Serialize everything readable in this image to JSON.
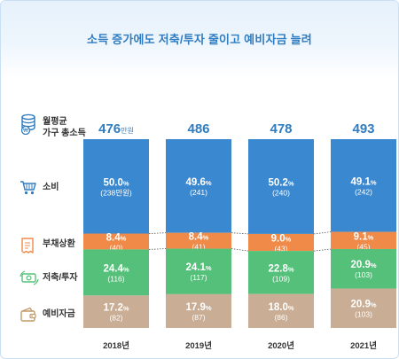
{
  "title": "소득 증가에도 저축/투자 줄이고 예비자금 늘려",
  "chart_data": {
    "type": "bar",
    "stacked": true,
    "categories": [
      "2018년",
      "2019년",
      "2020년",
      "2021년"
    ],
    "totals": [
      "476",
      "486",
      "478",
      "493"
    ],
    "total_unit": "만원",
    "total_label_lines": [
      "월평균",
      "가구 총소득"
    ],
    "series": [
      {
        "name": "소비",
        "pct": [
          50.0,
          49.6,
          50.2,
          49.1
        ],
        "pct_labels": [
          "50.0",
          "49.6",
          "50.2",
          "49.1"
        ],
        "amount_labels": [
          "(238만원)",
          "(241)",
          "(240)",
          "(242)"
        ],
        "color": "#3a88cf"
      },
      {
        "name": "부채상환",
        "pct": [
          8.4,
          8.4,
          9.0,
          9.1
        ],
        "pct_labels": [
          "8.4",
          "8.4",
          "9.0",
          "9.1"
        ],
        "amount_labels": [
          "(40)",
          "(41)",
          "(43)",
          "(45)"
        ],
        "color": "#ef8a48"
      },
      {
        "name": "저축/투자",
        "pct": [
          24.4,
          24.1,
          22.8,
          20.9
        ],
        "pct_labels": [
          "24.4",
          "24.1",
          "22.8",
          "20.9"
        ],
        "amount_labels": [
          "(116)",
          "(117)",
          "(109)",
          "(103)"
        ],
        "color": "#55c079"
      },
      {
        "name": "예비자금",
        "pct": [
          17.2,
          17.9,
          18.0,
          20.9
        ],
        "pct_labels": [
          "17.2",
          "17.9",
          "18.0",
          "20.9"
        ],
        "amount_labels": [
          "(82)",
          "(87)",
          "(86)",
          "(103)"
        ],
        "color": "#c9ad94"
      }
    ],
    "pct_symbol": "%",
    "icons": [
      "coin-stack-icon",
      "shopping-cart-icon",
      "bill-icon",
      "money-cycle-icon",
      "wallet-icon"
    ]
  }
}
